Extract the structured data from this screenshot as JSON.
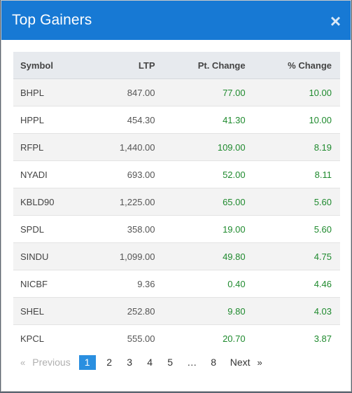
{
  "modal": {
    "title": "Top Gainers",
    "close_label": "×"
  },
  "table": {
    "columns": [
      "Symbol",
      "LTP",
      "Pt. Change",
      "% Change"
    ],
    "rows": [
      {
        "symbol": "BHPL",
        "ltp": "847.00",
        "pt_change": "77.00",
        "pct_change": "10.00"
      },
      {
        "symbol": "HPPL",
        "ltp": "454.30",
        "pt_change": "41.30",
        "pct_change": "10.00"
      },
      {
        "symbol": "RFPL",
        "ltp": "1,440.00",
        "pt_change": "109.00",
        "pct_change": "8.19"
      },
      {
        "symbol": "NYADI",
        "ltp": "693.00",
        "pt_change": "52.00",
        "pct_change": "8.11"
      },
      {
        "symbol": "KBLD90",
        "ltp": "1,225.00",
        "pt_change": "65.00",
        "pct_change": "5.60"
      },
      {
        "symbol": "SPDL",
        "ltp": "358.00",
        "pt_change": "19.00",
        "pct_change": "5.60"
      },
      {
        "symbol": "SINDU",
        "ltp": "1,099.00",
        "pt_change": "49.80",
        "pct_change": "4.75"
      },
      {
        "symbol": "NICBF",
        "ltp": "9.36",
        "pt_change": "0.40",
        "pct_change": "4.46"
      },
      {
        "symbol": "SHEL",
        "ltp": "252.80",
        "pt_change": "9.80",
        "pct_change": "4.03"
      },
      {
        "symbol": "KPCL",
        "ltp": "555.00",
        "pt_change": "20.70",
        "pct_change": "3.87"
      }
    ]
  },
  "pagination": {
    "prev_arrow": "«",
    "prev_label": "Previous",
    "pages": [
      "1",
      "2",
      "3",
      "4",
      "5"
    ],
    "ellipsis": "…",
    "last_page": "8",
    "next_label": "Next",
    "next_arrow": "»",
    "active_page": "1"
  },
  "colors": {
    "header": "#1779d4",
    "positive": "#1f8a2e",
    "active_page": "#2a8fe0"
  }
}
